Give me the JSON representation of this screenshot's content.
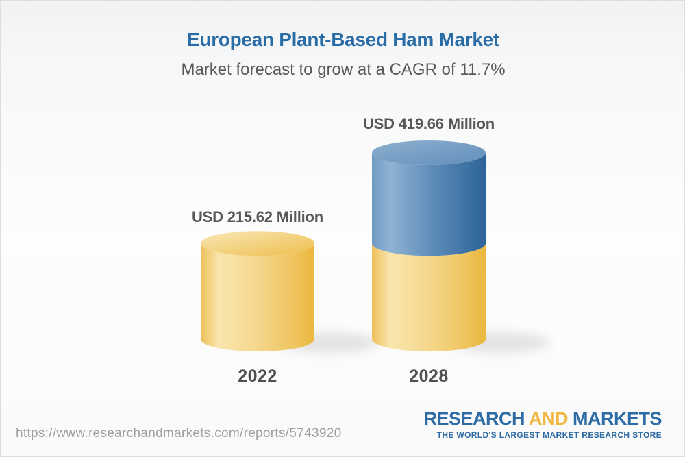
{
  "header": {
    "title": "European Plant-Based Ham Market",
    "subtitle": "Market forecast to grow at a CAGR of 11.7%",
    "title_color": "#2a6da6"
  },
  "chart_data": {
    "type": "bar",
    "style": "3d-cylinder",
    "categories": [
      "2022",
      "2028"
    ],
    "values": [
      215.62,
      419.66
    ],
    "value_labels": [
      "USD 215.62 Million",
      "USD 419.66 Million"
    ],
    "unit": "USD Million",
    "cagr_percent": 11.7,
    "title": "European Plant-Based Ham Market",
    "subtitle": "Market forecast to grow at a CAGR of 11.7%",
    "grid": "off",
    "legend": "none",
    "annotations": "2028 cylinder is stacked: yellow base equals the 2022 value, blue top segment is forecast growth",
    "colors": {
      "base_yellow": "#f2cf7d",
      "base_yellow_dark": "#ebb83e",
      "growth_blue": "#628fba",
      "growth_blue_dark": "#2c6399"
    }
  },
  "footer": {
    "url": "https://www.researchandmarkets.com/reports/5743920",
    "logo": {
      "research": "RESEARCH",
      "and": "AND",
      "markets": "MARKETS",
      "tagline": "THE WORLD'S LARGEST MARKET RESEARCH STORE",
      "blue": "#2d6ba4",
      "gold": "#f1b63f"
    }
  }
}
